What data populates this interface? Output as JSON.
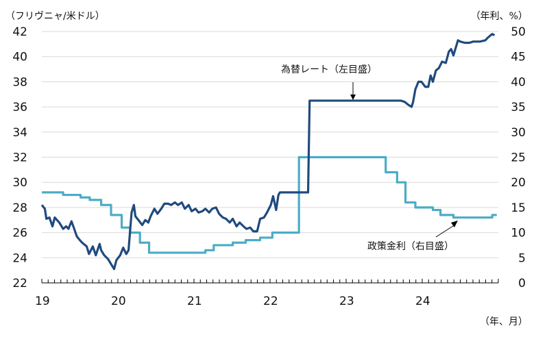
{
  "chart_data": {
    "type": "line",
    "left_axis_label": "（フリヴニャ/米ドル）",
    "right_axis_label": "（年利、%）",
    "x_axis_label": "（年、月）",
    "x_ticks": [
      "19",
      "20",
      "21",
      "22",
      "23",
      "24"
    ],
    "x_range": [
      2019,
      2025
    ],
    "left_ylim": [
      22,
      42
    ],
    "left_ticks": [
      "22",
      "24",
      "26",
      "28",
      "30",
      "32",
      "34",
      "36",
      "38",
      "40",
      "42"
    ],
    "right_ylim": [
      0,
      50
    ],
    "right_ticks": [
      "0",
      "5",
      "10",
      "15",
      "20",
      "25",
      "30",
      "35",
      "40",
      "45",
      "50"
    ],
    "grid": true,
    "colors": {
      "fx": "#1f4a7e",
      "rate": "#4bacc6",
      "grid": "#d9d9d9"
    },
    "annotations": {
      "fx": "為替レート（左目盛）",
      "rate": "政策金利（右目盛）"
    },
    "series": [
      {
        "name": "為替レート（左目盛）",
        "axis": "left",
        "step": false,
        "t": [
          2019.0,
          2019.04,
          2019.06,
          2019.1,
          2019.14,
          2019.17,
          2019.23,
          2019.28,
          2019.32,
          2019.35,
          2019.39,
          2019.42,
          2019.46,
          2019.5,
          2019.53,
          2019.59,
          2019.62,
          2019.67,
          2019.71,
          2019.76,
          2019.78,
          2019.82,
          2019.87,
          2019.91,
          2019.95,
          2019.98,
          2020.03,
          2020.07,
          2020.11,
          2020.14,
          2020.18,
          2020.21,
          2020.23,
          2020.27,
          2020.32,
          2020.36,
          2020.4,
          2020.43,
          2020.48,
          2020.52,
          2020.57,
          2020.61,
          2020.66,
          2020.7,
          2020.75,
          2020.79,
          2020.84,
          2020.88,
          2020.93,
          2020.97,
          2021.02,
          2021.06,
          2021.11,
          2021.15,
          2021.2,
          2021.24,
          2021.29,
          2021.33,
          2021.38,
          2021.42,
          2021.47,
          2021.51,
          2021.56,
          2021.6,
          2021.65,
          2021.69,
          2021.74,
          2021.78,
          2021.83,
          2021.87,
          2021.92,
          2021.96,
          2022.01,
          2022.04,
          2022.08,
          2022.11,
          2022.13,
          2022.5,
          2022.52,
          2023.72,
          2023.77,
          2023.81,
          2023.86,
          2023.88,
          2023.91,
          2023.95,
          2023.99,
          2024.04,
          2024.08,
          2024.11,
          2024.14,
          2024.18,
          2024.22,
          2024.26,
          2024.31,
          2024.35,
          2024.38,
          2024.41,
          2024.47,
          2024.5,
          2024.56,
          2024.62,
          2024.67,
          2024.76,
          2024.83,
          2024.86,
          2024.92,
          2024.95
        ],
        "values": [
          28.2,
          27.9,
          27.1,
          27.2,
          26.5,
          27.2,
          26.8,
          26.3,
          26.5,
          26.3,
          26.9,
          26.4,
          25.7,
          25.4,
          25.2,
          24.9,
          24.3,
          24.9,
          24.2,
          25.1,
          24.6,
          24.2,
          23.9,
          23.5,
          23.1,
          23.8,
          24.2,
          24.8,
          24.3,
          24.6,
          27.6,
          28.2,
          27.3,
          27.0,
          26.6,
          27.0,
          26.8,
          27.3,
          27.9,
          27.5,
          27.9,
          28.3,
          28.3,
          28.2,
          28.4,
          28.2,
          28.4,
          27.9,
          28.2,
          27.7,
          27.9,
          27.6,
          27.7,
          27.9,
          27.6,
          27.9,
          28.0,
          27.5,
          27.2,
          27.1,
          26.8,
          27.1,
          26.5,
          26.8,
          26.5,
          26.3,
          26.4,
          26.1,
          26.1,
          27.1,
          27.2,
          27.6,
          28.2,
          28.9,
          27.8,
          29.0,
          29.2,
          29.2,
          36.5,
          36.5,
          36.4,
          36.2,
          36.0,
          36.4,
          37.4,
          38.0,
          38.0,
          37.6,
          37.6,
          38.5,
          38.0,
          38.9,
          39.1,
          39.6,
          39.5,
          40.4,
          40.6,
          40.1,
          41.3,
          41.2,
          41.1,
          41.1,
          41.2,
          41.2,
          41.3,
          41.5,
          41.8,
          41.7
        ]
      },
      {
        "name": "政策金利（右目盛）",
        "axis": "right",
        "step": true,
        "t": [
          2019.0,
          2019.28,
          2019.51,
          2019.63,
          2019.78,
          2019.91,
          2020.05,
          2020.16,
          2020.29,
          2020.41,
          2021.15,
          2021.26,
          2021.51,
          2021.68,
          2021.87,
          2022.03,
          2022.38,
          2023.52,
          2023.67,
          2023.78,
          2023.91,
          2024.14,
          2024.24,
          2024.41,
          2024.92,
          2024.98
        ],
        "values": [
          18,
          17.5,
          17,
          16.5,
          15.5,
          13.5,
          11,
          10,
          8,
          6,
          6.5,
          7.5,
          8,
          8.5,
          9,
          10,
          25,
          22,
          20,
          16,
          15,
          14.5,
          13.5,
          13,
          13.5,
          13.5
        ]
      }
    ]
  }
}
